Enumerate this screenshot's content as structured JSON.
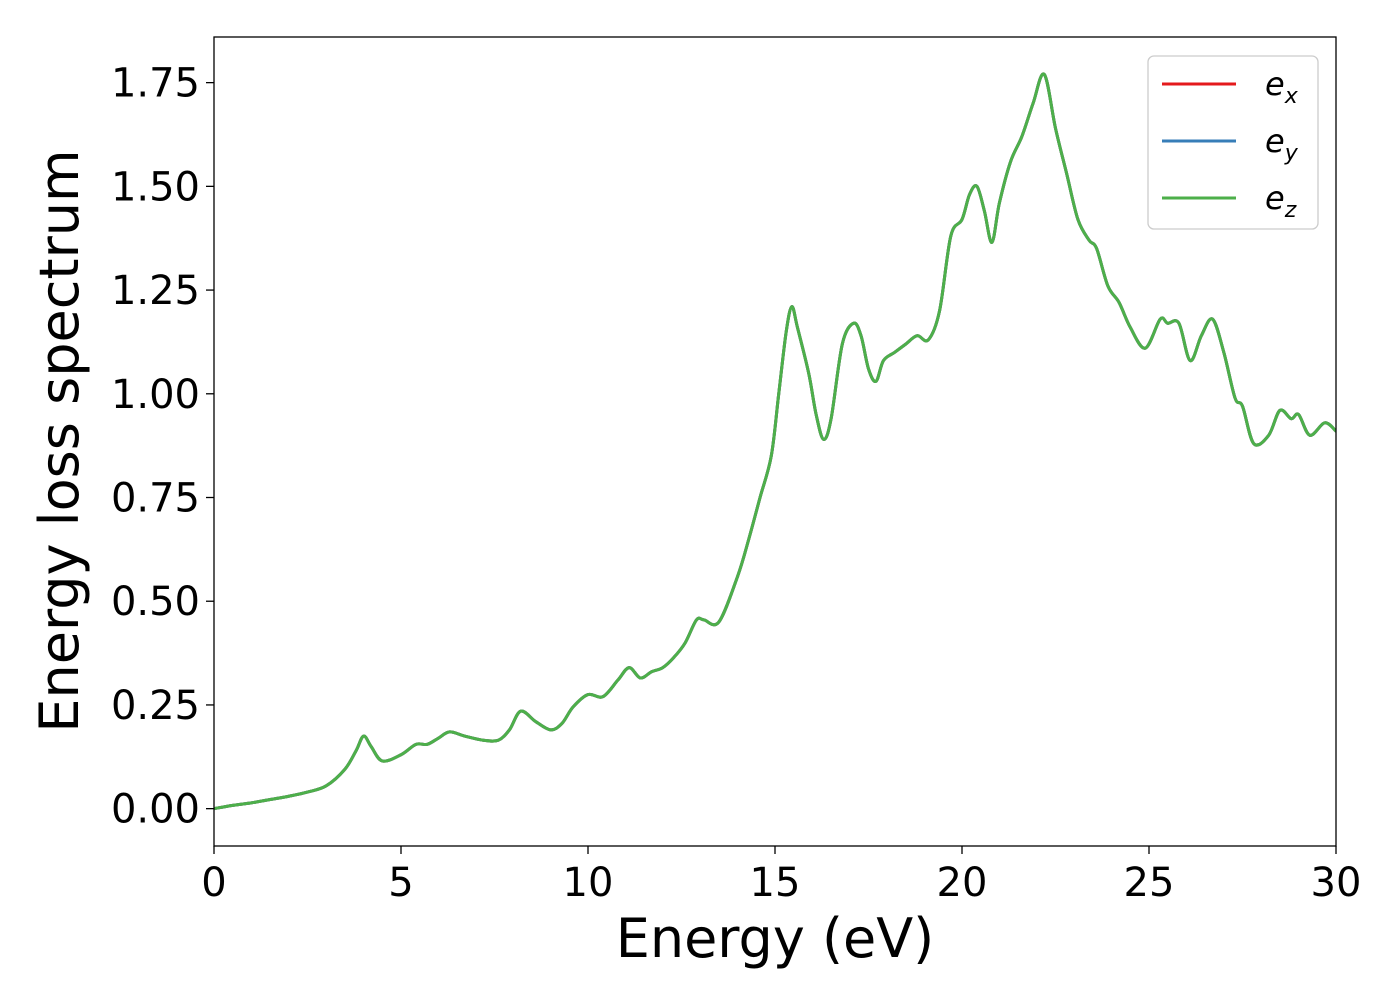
{
  "chart_data": {
    "type": "line",
    "title": "",
    "xlabel": "Energy (eV)",
    "ylabel": "Energy loss spectrum",
    "xlim": [
      0,
      30
    ],
    "ylim": [
      -0.09,
      1.86
    ],
    "x_ticks": [
      0,
      5,
      10,
      15,
      20,
      25,
      30
    ],
    "x_tick_labels": [
      "0",
      "5",
      "10",
      "15",
      "20",
      "25",
      "30"
    ],
    "y_ticks": [
      0.0,
      0.25,
      0.5,
      0.75,
      1.0,
      1.25,
      1.5,
      1.75
    ],
    "y_tick_labels": [
      "0.00",
      "0.25",
      "0.50",
      "0.75",
      "1.00",
      "1.25",
      "1.50",
      "1.75"
    ],
    "grid": false,
    "legend_position": "top-right",
    "series": [
      {
        "name": "e",
        "subscript": "x",
        "color": "#e41a1c"
      },
      {
        "name": "e",
        "subscript": "y",
        "color": "#377eb8"
      },
      {
        "name": "e",
        "subscript": "z",
        "color": "#4daf4a"
      }
    ],
    "x": [
      0,
      0.5,
      1.0,
      1.5,
      2.0,
      2.5,
      3.0,
      3.5,
      3.8,
      4.0,
      4.2,
      4.5,
      5.0,
      5.4,
      5.7,
      6.0,
      6.3,
      6.7,
      7.2,
      7.6,
      7.9,
      8.2,
      8.6,
      9.0,
      9.3,
      9.6,
      10.0,
      10.4,
      10.8,
      11.1,
      11.4,
      11.7,
      12.0,
      12.3,
      12.6,
      12.9,
      13.1,
      13.5,
      14.0,
      14.3,
      14.6,
      14.9,
      15.1,
      15.3,
      15.45,
      15.6,
      15.9,
      16.1,
      16.3,
      16.5,
      16.8,
      17.1,
      17.3,
      17.5,
      17.7,
      17.9,
      18.2,
      18.5,
      18.8,
      19.1,
      19.4,
      19.7,
      20.0,
      20.2,
      20.4,
      20.6,
      20.8,
      21.0,
      21.3,
      21.6,
      21.9,
      22.2,
      22.5,
      22.8,
      23.1,
      23.4,
      23.6,
      23.9,
      24.2,
      24.5,
      24.9,
      25.3,
      25.5,
      25.8,
      26.1,
      26.4,
      26.7,
      27.0,
      27.3,
      27.5,
      27.8,
      28.2,
      28.5,
      28.8,
      29.0,
      29.3,
      29.7,
      30.0
    ],
    "y": [
      0.0,
      0.008,
      0.014,
      0.022,
      0.03,
      0.04,
      0.055,
      0.095,
      0.14,
      0.175,
      0.15,
      0.115,
      0.13,
      0.155,
      0.155,
      0.17,
      0.185,
      0.175,
      0.165,
      0.165,
      0.19,
      0.235,
      0.21,
      0.19,
      0.205,
      0.245,
      0.275,
      0.27,
      0.31,
      0.34,
      0.315,
      0.33,
      0.34,
      0.365,
      0.4,
      0.455,
      0.455,
      0.45,
      0.56,
      0.65,
      0.75,
      0.85,
      1.0,
      1.15,
      1.21,
      1.16,
      1.05,
      0.95,
      0.89,
      0.94,
      1.12,
      1.17,
      1.14,
      1.06,
      1.03,
      1.08,
      1.1,
      1.12,
      1.14,
      1.13,
      1.2,
      1.38,
      1.42,
      1.48,
      1.5,
      1.44,
      1.365,
      1.46,
      1.56,
      1.62,
      1.7,
      1.77,
      1.64,
      1.53,
      1.42,
      1.37,
      1.35,
      1.26,
      1.22,
      1.16,
      1.11,
      1.18,
      1.17,
      1.17,
      1.08,
      1.14,
      1.18,
      1.1,
      0.99,
      0.97,
      0.88,
      0.9,
      0.96,
      0.94,
      0.95,
      0.9,
      0.93,
      0.91
    ]
  }
}
